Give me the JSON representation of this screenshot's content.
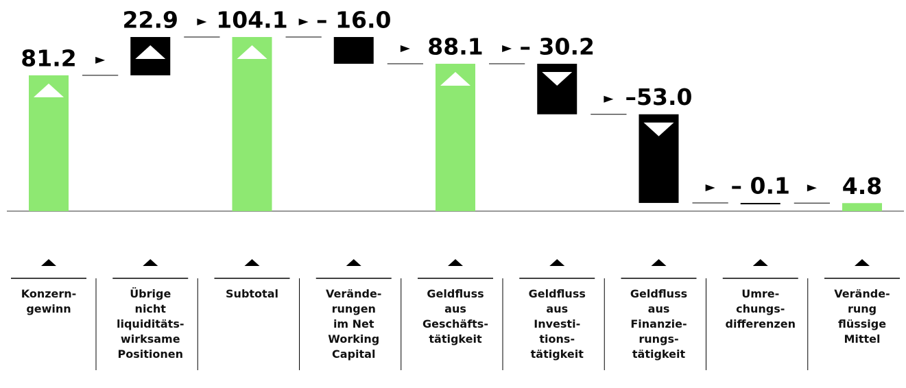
{
  "chart_data": {
    "type": "waterfall",
    "categories": [
      "Konzern-\ngewinn",
      "Übrige\nnicht\nliquiditäts-\nwirksame\nPositionen",
      "Subtotal",
      "Verände-\nrungen\nim Net\nWorking\nCapital",
      "Geldfluss\naus\nGeschäfts-\ntätigkeit",
      "Geldfluss\naus\nInvesti-\ntions-\ntätigkeit",
      "Geldfluss\naus\nFinanzie-\nrungs-\ntätigkeit",
      "Umre-\nchungs-\ndifferenzen",
      "Verände-\nrung\nflüssige\nMittel"
    ],
    "values": [
      81.2,
      22.9,
      104.1,
      -16.0,
      88.1,
      -30.2,
      -53.0,
      -0.1,
      4.8
    ],
    "value_labels": [
      "81.2",
      "22.9",
      "104.1",
      "– 16.0",
      "88.1",
      "– 30.2",
      "–53.0",
      "– 0.1",
      "4.8"
    ],
    "measure": [
      "absolute",
      "relative",
      "absolute",
      "relative",
      "absolute",
      "relative",
      "relative",
      "relative",
      "absolute"
    ],
    "colors": [
      "#8ee872",
      "#000000",
      "#8ee872",
      "#000000",
      "#8ee872",
      "#000000",
      "#000000",
      "#000000",
      "#8ee872"
    ]
  }
}
